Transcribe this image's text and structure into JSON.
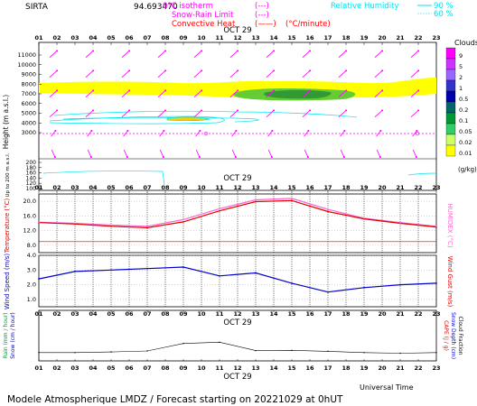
{
  "header": {
    "station": "SIRTA",
    "coords": "94.693470",
    "legend_left": [
      {
        "label": "0°C isotherm",
        "color": "#ff00ff",
        "sample": "(---)"
      },
      {
        "label": "Snow-Rain Limit",
        "color": "#ff00ff",
        "sample": "(---)"
      },
      {
        "label": "Convective Heat",
        "color": "#ff0000",
        "sample": "(——)",
        "unit": "(°C/minute)"
      }
    ],
    "legend_right": {
      "label": "Relative Humidity",
      "color": "#00e5ee",
      "lines": [
        "90 %",
        "60 %"
      ]
    }
  },
  "footer": {
    "text": "Modele Atmospherique LMDZ / Forecast starting on 20221029 at 0hUT",
    "time_label": "Universal Time"
  },
  "colors": {
    "temp": "#e00000",
    "humidex": "#ff66cc",
    "wind": "#0000cc",
    "wind_arrow": "#ff00ff",
    "precip": "#000000",
    "cloud_yellow": "#ffff00",
    "rh": "#00e5ee"
  },
  "chart_data": [
    {
      "type": "heatmap",
      "panel": "vertical-profile",
      "date_label": "OCT 29",
      "x_hours": [
        "01",
        "02",
        "03",
        "04",
        "05",
        "06",
        "07",
        "08",
        "09",
        "10",
        "11",
        "12",
        "13",
        "14",
        "15",
        "16",
        "17",
        "18",
        "19",
        "20",
        "21",
        "22",
        "23"
      ],
      "ylabel": "Height (m a.s.l.)",
      "ylabel2": "Up to 200 m a.s.l.",
      "y_ticks_upper": [
        11000,
        10000,
        9000,
        8000,
        7000,
        6000,
        5000,
        4000,
        3000
      ],
      "y_ticks_lower": [
        200,
        180,
        160,
        140,
        120,
        100
      ],
      "zero_isotherm_m": 3000,
      "colorbar": {
        "title": "Clouds",
        "unit": "(g/kg)",
        "levels": [
          "9",
          "5",
          "2",
          "1",
          "0.5",
          "0.2",
          "0.1",
          "0.05",
          "0.02",
          "0.01"
        ],
        "colors": [
          "#ff00ff",
          "#cc33ff",
          "#9966ff",
          "#3333cc",
          "#0000aa",
          "#006666",
          "#009933",
          "#33cc66",
          "#ccff66",
          "#ffff00"
        ]
      },
      "cloud_layer_m": {
        "base": 6400,
        "top": 7600
      }
    },
    {
      "type": "line",
      "panel": "temperature",
      "ylabel": "Temperature (°C)",
      "ylabel_right": "HUMIDEX (°C)",
      "y_ticks": [
        8.0,
        12.0,
        16.0,
        20.0
      ],
      "ylim": [
        6.0,
        22.0
      ],
      "x": [
        1,
        3,
        5,
        7,
        9,
        11,
        13,
        15,
        17,
        19,
        21,
        23
      ],
      "series": [
        {
          "name": "Temperature",
          "values": [
            14.2,
            13.8,
            13.2,
            12.8,
            14.4,
            17.4,
            19.9,
            20.2,
            17.2,
            15.2,
            14.0,
            13.0
          ]
        },
        {
          "name": "HUMIDEX",
          "values": [
            14.3,
            14.0,
            13.5,
            13.2,
            15.0,
            18.0,
            20.4,
            20.8,
            17.8,
            15.4,
            14.2,
            13.2
          ]
        }
      ],
      "ref_line": 9.0
    },
    {
      "type": "line",
      "panel": "wind",
      "ylabel": "Wind Speed (m/s)",
      "ylabel_right": "Wind Gust (m/s)",
      "y_ticks": [
        1.0,
        2.0,
        3.0,
        4.0
      ],
      "ylim": [
        0.5,
        4.0
      ],
      "x": [
        1,
        3,
        5,
        7,
        9,
        11,
        13,
        15,
        17,
        19,
        21,
        23
      ],
      "series": [
        {
          "name": "Wind Speed",
          "values": [
            2.4,
            2.9,
            3.0,
            3.1,
            3.2,
            2.6,
            2.8,
            2.1,
            1.5,
            1.8,
            2.0,
            2.1
          ]
        }
      ]
    },
    {
      "type": "line",
      "panel": "precipitation",
      "date_label": "OCT 29",
      "ylabel": "Rain (mm / hour)",
      "ylabel2": "Snow (cm / hour)",
      "ylabel_right": "CAPE (J / g)",
      "ylabel_right2": "Snow Depth (cm)",
      "ylabel_right3": "Cloud Fraction",
      "x": [
        1,
        3,
        5,
        7,
        9,
        11,
        13,
        15,
        17,
        19,
        21,
        23
      ],
      "series": [
        {
          "name": "Cloud Fraction",
          "values": [
            0.2,
            0.2,
            0.22,
            0.25,
            0.48,
            0.52,
            0.26,
            0.27,
            0.24,
            0.2,
            0.18,
            0.2
          ]
        }
      ]
    }
  ]
}
